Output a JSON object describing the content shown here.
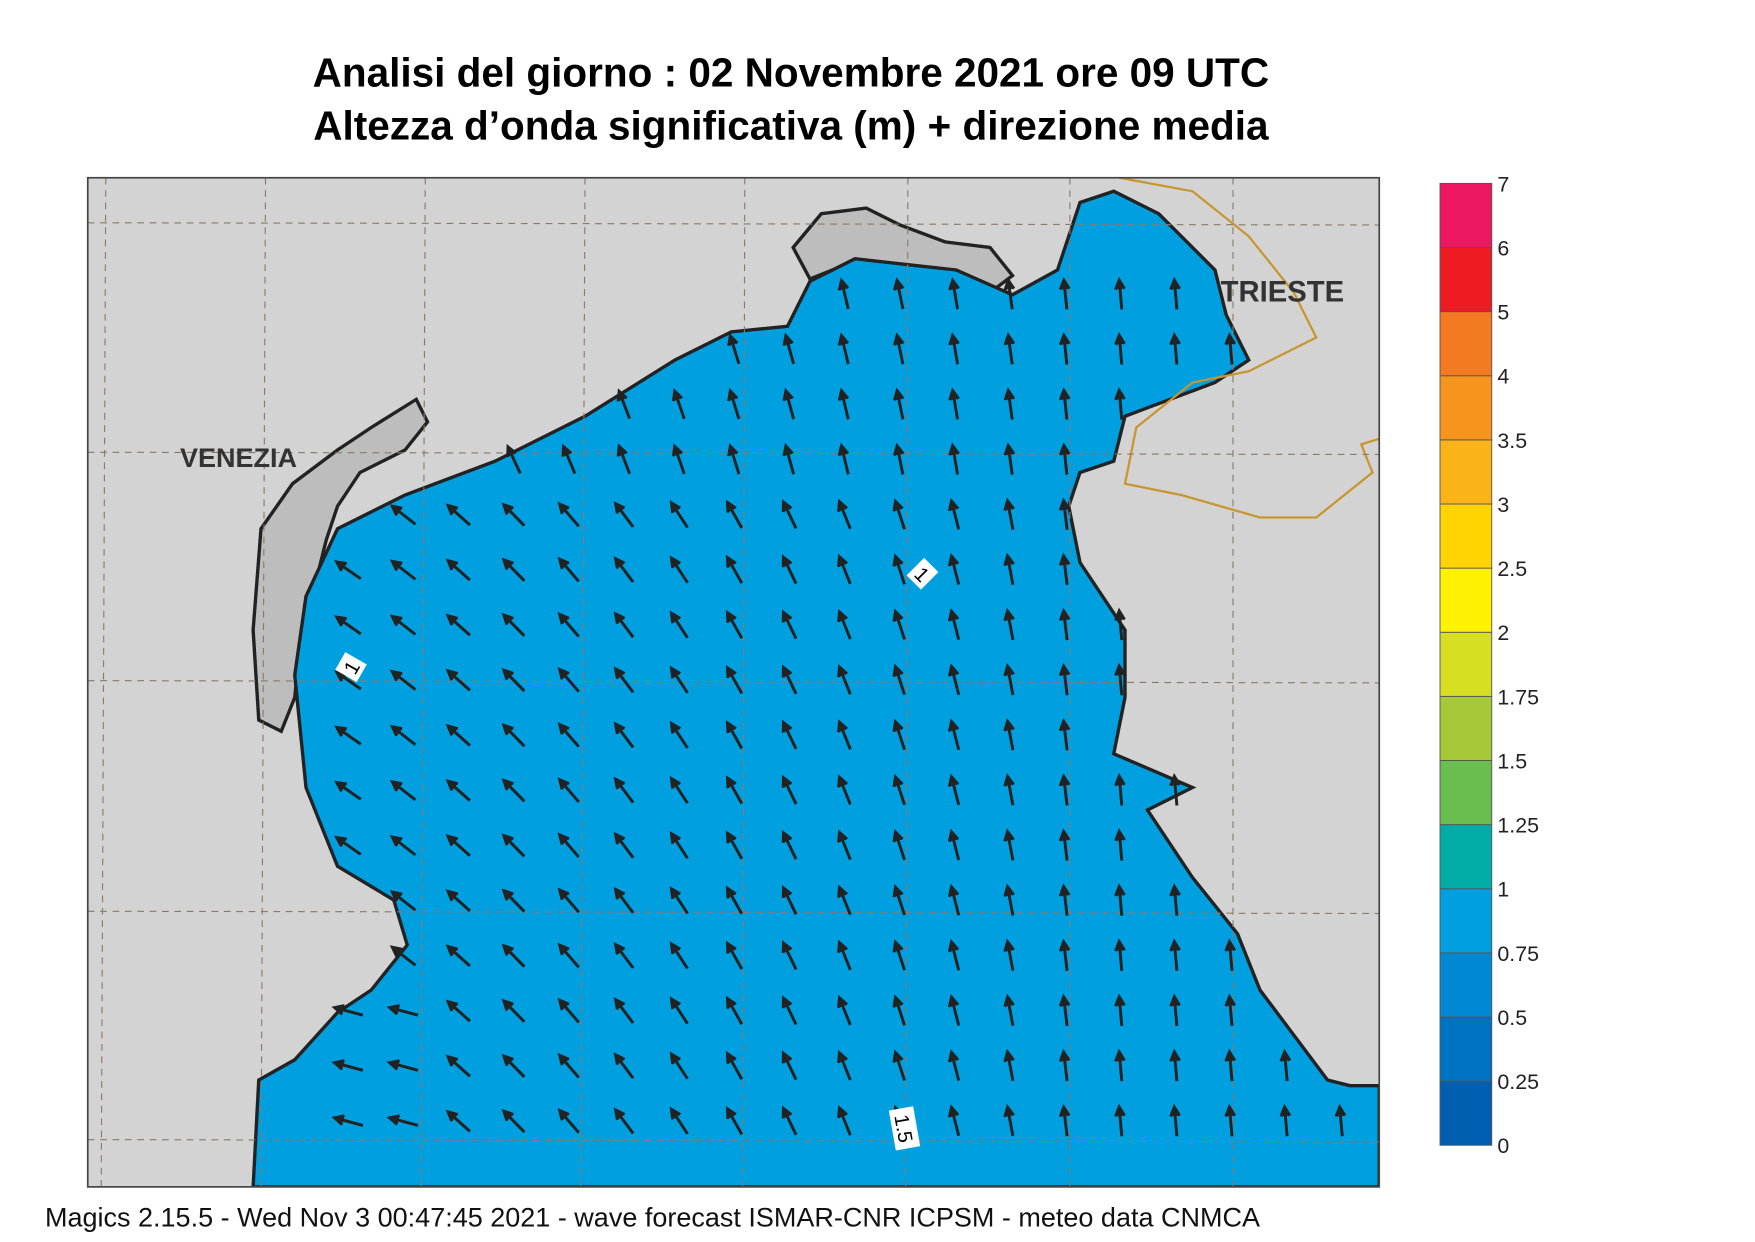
{
  "header": {
    "title_line1": "Analisi del giorno :  02 Novembre  2021   ore 09 UTC",
    "title_line2": "Altezza d’onda significativa (m) + direzione media"
  },
  "map": {
    "places": {
      "venezia": "VENEZIA",
      "trieste": "TRIESTE"
    },
    "contour_labels": [
      "1",
      "1",
      "1.5"
    ]
  },
  "colorbar": {
    "ticks": [
      "0",
      "0.25",
      "0.5",
      "0.75",
      "1",
      "1.25",
      "1.5",
      "1.75",
      "2",
      "2.5",
      "3",
      "3.5",
      "4",
      "5",
      "6",
      "7"
    ],
    "colors": [
      "#005eb0",
      "#0072c2",
      "#0088d2",
      "#009fe0",
      "#00aca6",
      "#6abd4f",
      "#a6c93a",
      "#d6df22",
      "#fff200",
      "#ffd400",
      "#fbb417",
      "#f7941d",
      "#f37a21",
      "#ed1c24",
      "#ec1662"
    ]
  },
  "footer": "Magics 2.15.5 - Wed Nov  3 00:47:45 2021 - wave forecast  ISMAR-CNR  ICPSM - meteo data   CNMCA"
}
